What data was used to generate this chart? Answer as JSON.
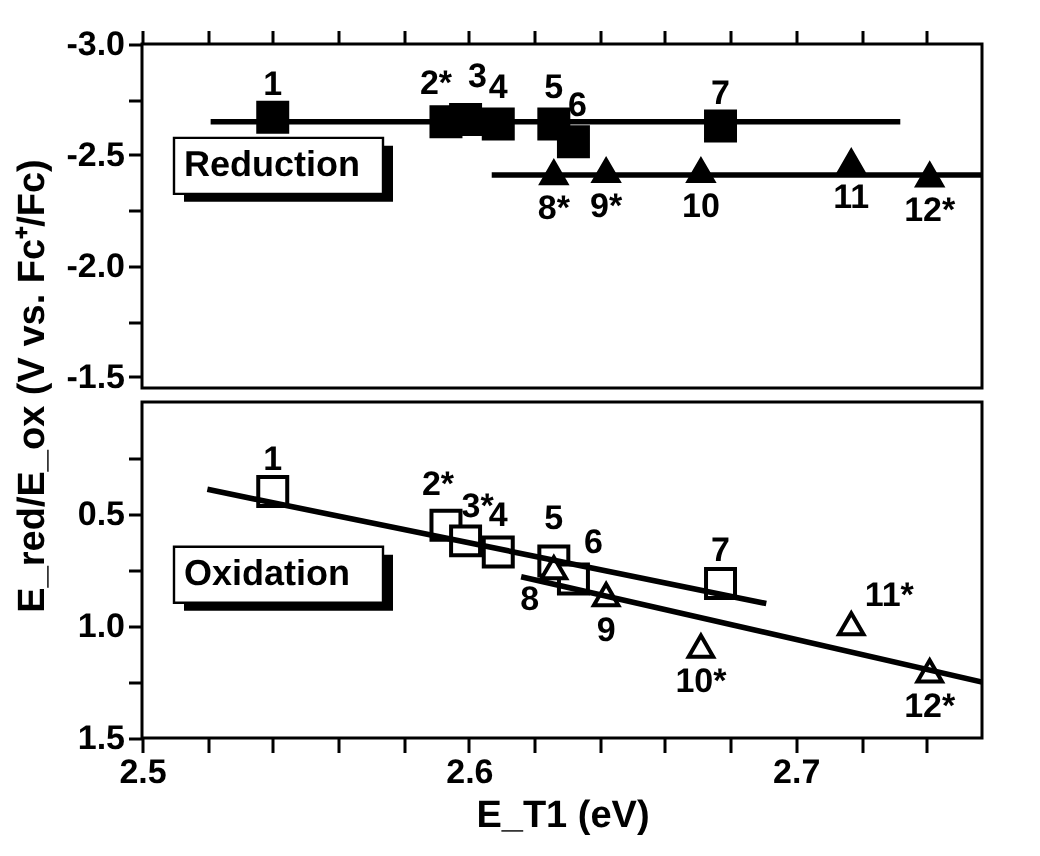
{
  "chart_data": [
    {
      "type": "scatter",
      "ylabel": "E_red/E_ox (V vs. Fc⁺/Fc)",
      "xlim": [
        2.5,
        2.757
      ],
      "ylim": [
        -1.45,
        -3.0
      ],
      "xticks": [
        {
          "value": 2.5,
          "label": null
        },
        {
          "value": 2.52,
          "label": null
        },
        {
          "value": 2.54,
          "label": null
        },
        {
          "value": 2.56,
          "label": null
        },
        {
          "value": 2.58,
          "label": null
        },
        {
          "value": 2.6,
          "label": null
        },
        {
          "value": 2.62,
          "label": null
        },
        {
          "value": 2.64,
          "label": null
        },
        {
          "value": 2.66,
          "label": null
        },
        {
          "value": 2.68,
          "label": null
        },
        {
          "value": 2.7,
          "label": null
        },
        {
          "value": 2.72,
          "label": null
        },
        {
          "value": 2.74,
          "label": null
        }
      ],
      "yticks": [
        {
          "value": -3.0,
          "label": "-3.0"
        },
        {
          "value": -2.75,
          "label": null
        },
        {
          "value": -2.5,
          "label": "-2.5"
        },
        {
          "value": -2.25,
          "label": null
        },
        {
          "value": -2.0,
          "label": "-2.0"
        },
        {
          "value": -1.75,
          "label": null
        },
        {
          "value": -1.5,
          "label": "-1.5"
        }
      ],
      "tick_labels": "y",
      "grid": false,
      "annotations": [
        "Reduction",
        {
          "text": "1",
          "x": 2.54,
          "y": -2.67
        },
        {
          "text": "2*",
          "x": 2.593,
          "y": -2.65
        },
        {
          "text": "3",
          "x": 2.599,
          "y": -2.66
        },
        {
          "text": "4",
          "x": 2.609,
          "y": -2.64
        },
        {
          "text": "5",
          "x": 2.626,
          "y": -2.64
        },
        {
          "text": "6",
          "x": 2.632,
          "y": -2.56
        },
        {
          "text": "7",
          "x": 2.677,
          "y": -2.63
        },
        {
          "text": "8*",
          "x": 2.626,
          "y": -2.42
        },
        {
          "text": "9*",
          "x": 2.642,
          "y": -2.43
        },
        {
          "text": "10",
          "x": 2.671,
          "y": -2.43
        },
        {
          "text": "11",
          "x": 2.717,
          "y": -2.47
        },
        {
          "text": "12*",
          "x": 2.741,
          "y": -2.41
        }
      ],
      "series": [
        {
          "marker": "square",
          "color": "#000000",
          "x": [
            2.54,
            2.593,
            2.599,
            2.609,
            2.626,
            2.632,
            2.677
          ],
          "values": [
            -2.67,
            -2.65,
            -2.66,
            -2.64,
            -2.64,
            -2.56,
            -2.63
          ]
        },
        {
          "marker": "triangle",
          "color": "#000000",
          "x": [
            2.626,
            2.642,
            2.671,
            2.717,
            2.741
          ],
          "values": [
            -2.42,
            -2.43,
            -2.43,
            -2.47,
            -2.41
          ]
        },
        {
          "type": "line",
          "color": "#000000",
          "x": [
            2.521,
            2.732
          ],
          "values": [
            -2.65,
            -2.65
          ]
        },
        {
          "type": "line",
          "color": "#000000",
          "x": [
            2.607,
            2.757
          ],
          "values": [
            -2.41,
            -2.41
          ]
        }
      ]
    },
    {
      "type": "scatter",
      "xlabel": "E_T1 (eV)",
      "xlim": [
        2.5,
        2.757
      ],
      "ylim": [
        1.5,
        0.0
      ],
      "xticks": [
        {
          "value": 2.5,
          "label": "2.5"
        },
        {
          "value": 2.52,
          "label": null
        },
        {
          "value": 2.54,
          "label": null
        },
        {
          "value": 2.56,
          "label": null
        },
        {
          "value": 2.58,
          "label": null
        },
        {
          "value": 2.6,
          "label": "2.6"
        },
        {
          "value": 2.62,
          "label": null
        },
        {
          "value": 2.64,
          "label": null
        },
        {
          "value": 2.66,
          "label": null
        },
        {
          "value": 2.68,
          "label": null
        },
        {
          "value": 2.7,
          "label": "2.7"
        },
        {
          "value": 2.72,
          "label": null
        },
        {
          "value": 2.74,
          "label": null
        }
      ],
      "yticks": [
        {
          "value": 0.25,
          "label": null
        },
        {
          "value": 0.5,
          "label": "0.5"
        },
        {
          "value": 0.75,
          "label": null
        },
        {
          "value": 1.0,
          "label": "1.0"
        },
        {
          "value": 1.25,
          "label": null
        },
        {
          "value": 1.5,
          "label": "1.5"
        }
      ],
      "grid": false,
      "annotations": [
        "Oxidation",
        {
          "text": "1",
          "x": 2.54,
          "y": 0.4
        },
        {
          "text": "2*",
          "x": 2.593,
          "y": 0.55
        },
        {
          "text": "3*",
          "x": 2.599,
          "y": 0.62
        },
        {
          "text": "4",
          "x": 2.609,
          "y": 0.67
        },
        {
          "text": "5",
          "x": 2.626,
          "y": 0.71
        },
        {
          "text": "6",
          "x": 2.632,
          "y": 0.79
        },
        {
          "text": "7",
          "x": 2.677,
          "y": 0.81
        },
        {
          "text": "8",
          "x": 2.626,
          "y": 0.74
        },
        {
          "text": "9",
          "x": 2.642,
          "y": 0.86
        },
        {
          "text": "10*",
          "x": 2.671,
          "y": 1.09
        },
        {
          "text": "11*",
          "x": 2.717,
          "y": 0.99
        },
        {
          "text": "12*",
          "x": 2.741,
          "y": 1.2
        }
      ],
      "series": [
        {
          "marker": "square",
          "color": "#000000",
          "x": [
            2.54,
            2.593,
            2.599,
            2.609,
            2.626,
            2.632,
            2.677
          ],
          "values": [
            0.4,
            0.55,
            0.62,
            0.67,
            0.71,
            0.79,
            0.81
          ]
        },
        {
          "marker": "triangle",
          "color": "#000000",
          "x": [
            2.626,
            2.642,
            2.671,
            2.717,
            2.741
          ],
          "values": [
            0.74,
            0.86,
            1.09,
            0.99,
            1.2
          ]
        },
        {
          "type": "line",
          "color": "#000000",
          "x": [
            2.52,
            2.691
          ],
          "values": [
            0.39,
            0.9
          ]
        },
        {
          "type": "line",
          "color": "#000000",
          "x": [
            2.616,
            2.757
          ],
          "values": [
            0.78,
            1.25
          ]
        }
      ]
    }
  ]
}
